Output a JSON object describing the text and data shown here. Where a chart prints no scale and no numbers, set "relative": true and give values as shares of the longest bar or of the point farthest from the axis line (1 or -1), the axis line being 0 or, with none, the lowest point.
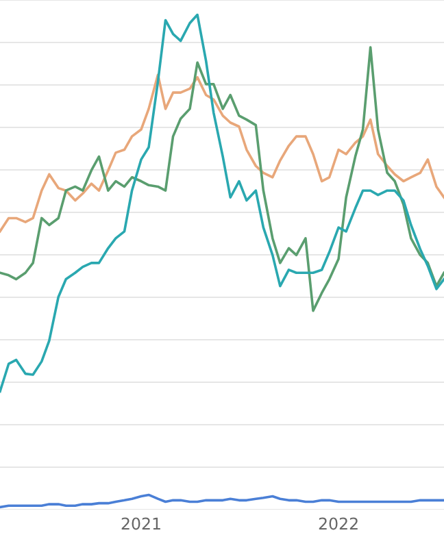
{
  "chart_data": {
    "type": "line",
    "relative": true,
    "grid": "y",
    "marker": "none",
    "line_style": "solid",
    "x": [
      "2020-04-15",
      "2020-05-01",
      "2020-05-15",
      "2020-06-01",
      "2020-06-15",
      "2020-07-01",
      "2020-07-15",
      "2020-08-01",
      "2020-08-15",
      "2020-09-01",
      "2020-09-15",
      "2020-10-01",
      "2020-10-15",
      "2020-11-01",
      "2020-11-15",
      "2020-12-01",
      "2020-12-15",
      "2021-01-01",
      "2021-01-15",
      "2021-02-01",
      "2021-02-15",
      "2021-03-01",
      "2021-03-15",
      "2021-04-01",
      "2021-04-15",
      "2021-05-01",
      "2021-05-15",
      "2021-06-01",
      "2021-06-15",
      "2021-07-01",
      "2021-07-15",
      "2021-08-01",
      "2021-08-15",
      "2021-09-01",
      "2021-09-15",
      "2021-10-01",
      "2021-10-15",
      "2021-11-01",
      "2021-11-15",
      "2021-12-01",
      "2021-12-15",
      "2022-01-01",
      "2022-01-15",
      "2022-02-01",
      "2022-02-15",
      "2022-03-01",
      "2022-03-15",
      "2022-04-01",
      "2022-04-15",
      "2022-05-01",
      "2022-05-15",
      "2022-06-01",
      "2022-06-15",
      "2022-07-01",
      "2022-07-15"
    ],
    "xlim": [
      "2020-04-15",
      "2022-07-15"
    ],
    "xticks": [
      "2021",
      "2022"
    ],
    "series": [
      {
        "color": "#e8a77a",
        "values": [
          0.56,
          0.587,
          0.587,
          0.579,
          0.587,
          0.643,
          0.676,
          0.648,
          0.643,
          0.623,
          0.637,
          0.657,
          0.643,
          0.684,
          0.72,
          0.726,
          0.753,
          0.767,
          0.809,
          0.878,
          0.809,
          0.842,
          0.842,
          0.85,
          0.873,
          0.837,
          0.828,
          0.795,
          0.781,
          0.773,
          0.726,
          0.693,
          0.679,
          0.67,
          0.704,
          0.734,
          0.753,
          0.753,
          0.717,
          0.662,
          0.67,
          0.726,
          0.717,
          0.74,
          0.753,
          0.787,
          0.717,
          0.693,
          0.676,
          0.662,
          0.67,
          0.679,
          0.706,
          0.651,
          0.629
        ]
      },
      {
        "color": "#5a9e6f",
        "values": [
          0.476,
          0.471,
          0.463,
          0.476,
          0.496,
          0.587,
          0.573,
          0.587,
          0.643,
          0.651,
          0.643,
          0.684,
          0.712,
          0.643,
          0.662,
          0.651,
          0.67,
          0.662,
          0.654,
          0.651,
          0.643,
          0.753,
          0.789,
          0.809,
          0.903,
          0.859,
          0.859,
          0.809,
          0.837,
          0.795,
          0.787,
          0.776,
          0.643,
          0.546,
          0.496,
          0.526,
          0.512,
          0.546,
          0.399,
          0.435,
          0.463,
          0.504,
          0.629,
          0.712,
          0.767,
          0.934,
          0.767,
          0.679,
          0.662,
          0.615,
          0.546,
          0.512,
          0.496,
          0.449,
          0.476
        ]
      },
      {
        "color": "#2aa8b0",
        "values": [
          0.235,
          0.291,
          0.299,
          0.271,
          0.269,
          0.296,
          0.338,
          0.427,
          0.463,
          0.476,
          0.488,
          0.496,
          0.496,
          0.526,
          0.546,
          0.56,
          0.643,
          0.706,
          0.731,
          0.864,
          0.989,
          0.961,
          0.947,
          0.983,
          1.0,
          0.906,
          0.801,
          0.712,
          0.629,
          0.662,
          0.623,
          0.643,
          0.568,
          0.512,
          0.449,
          0.482,
          0.476,
          0.476,
          0.476,
          0.482,
          0.518,
          0.568,
          0.56,
          0.607,
          0.643,
          0.643,
          0.634,
          0.643,
          0.643,
          0.623,
          0.573,
          0.524,
          0.49,
          0.443,
          0.463
        ]
      },
      {
        "color": "#4a7fd6",
        "values": [
          0,
          0.003,
          0.003,
          0.003,
          0.003,
          0.003,
          0.006,
          0.006,
          0.003,
          0.003,
          0.006,
          0.006,
          0.008,
          0.008,
          0.011,
          0.014,
          0.017,
          0.022,
          0.025,
          0.017,
          0.011,
          0.014,
          0.014,
          0.011,
          0.011,
          0.014,
          0.014,
          0.014,
          0.017,
          0.014,
          0.014,
          0.017,
          0.019,
          0.022,
          0.017,
          0.014,
          0.014,
          0.011,
          0.011,
          0.014,
          0.014,
          0.011,
          0.011,
          0.011,
          0.011,
          0.011,
          0.011,
          0.011,
          0.011,
          0.011,
          0.011,
          0.014,
          0.014,
          0.014,
          0.014
        ]
      }
    ]
  }
}
